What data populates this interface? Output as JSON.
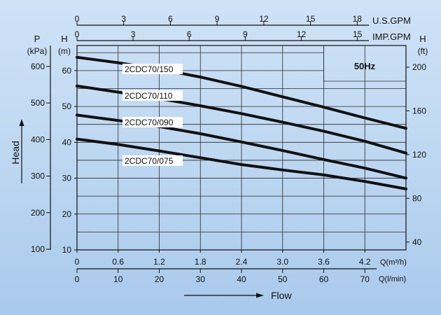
{
  "chart_data": {
    "type": "line",
    "frequency_label": "50Hz",
    "y_axis_title": "Head",
    "x_axis_title": "Flow",
    "axes": {
      "top_usgpm": {
        "unit": "U.S.GPM",
        "ticks": [
          "0",
          "3",
          "6",
          "9",
          "12",
          "15",
          "18"
        ],
        "values": [
          0,
          3,
          6,
          9,
          12,
          15,
          18
        ],
        "max_q": 4.54
      },
      "top_impgpm": {
        "unit": "IMP.GPM",
        "ticks": [
          "0",
          "3",
          "6",
          "9",
          "12",
          "15"
        ],
        "values": [
          0,
          3,
          6,
          9,
          12,
          15
        ],
        "max_q": 4.09
      },
      "bottom_q_m3h": {
        "unit": "Q(m³/h)",
        "ticks": [
          "0",
          "0.6",
          "1.2",
          "1.8",
          "2.4",
          "3.0",
          "3.6",
          "4.2"
        ],
        "values": [
          0,
          0.6,
          1.2,
          1.8,
          2.4,
          3.0,
          3.6,
          4.2
        ],
        "range": [
          0,
          4.8
        ]
      },
      "bottom_q_lmin": {
        "unit": "Q(l/min)",
        "ticks": [
          "0",
          "10",
          "20",
          "30",
          "40",
          "50",
          "60",
          "70"
        ],
        "values": [
          0,
          10,
          20,
          30,
          40,
          50,
          60,
          70
        ]
      },
      "left_head_m": {
        "symbol": "H",
        "unit": "(m)",
        "ticks": [
          "10",
          "20",
          "30",
          "40",
          "50",
          "60"
        ],
        "values": [
          10,
          20,
          30,
          40,
          50,
          60
        ],
        "range": [
          10,
          67
        ]
      },
      "left_pressure_kpa": {
        "symbol": "P",
        "unit": "(kPa)",
        "ticks": [
          "100",
          "200",
          "300",
          "400",
          "500",
          "600"
        ],
        "values": [
          100,
          200,
          300,
          400,
          500,
          600
        ]
      },
      "right_head_ft": {
        "symbol": "H",
        "unit": "(ft)",
        "ticks": [
          "40",
          "80",
          "120",
          "160",
          "200"
        ],
        "values": [
          40,
          80,
          120,
          160,
          200
        ]
      }
    },
    "series": [
      {
        "name": "2CDC70/150",
        "x": [
          0,
          0.6,
          1.2,
          1.8,
          2.4,
          3.0,
          3.6,
          4.2,
          4.8
        ],
        "y": [
          63.7,
          62.2,
          60.4,
          58.2,
          55.6,
          52.7,
          49.8,
          46.8,
          43.9
        ]
      },
      {
        "name": "2CDC70/110",
        "x": [
          0,
          0.6,
          1.2,
          1.8,
          2.4,
          3.0,
          3.6,
          4.2,
          4.8
        ],
        "y": [
          55.7,
          54.0,
          52.2,
          50.2,
          48.0,
          45.6,
          43.1,
          40.3,
          37.0
        ]
      },
      {
        "name": "2CDC70/090",
        "x": [
          0,
          0.6,
          1.2,
          1.8,
          2.4,
          3.0,
          3.6,
          4.2,
          4.8
        ],
        "y": [
          47.6,
          46.1,
          44.4,
          42.4,
          40.1,
          37.7,
          35.2,
          32.8,
          30.0
        ]
      },
      {
        "name": "2CDC70/075",
        "x": [
          0,
          0.6,
          1.2,
          1.8,
          2.4,
          3.0,
          3.6,
          4.2,
          4.8
        ],
        "y": [
          40.9,
          39.4,
          37.6,
          35.7,
          33.8,
          32.3,
          30.9,
          29.1,
          27.0
        ]
      }
    ]
  }
}
